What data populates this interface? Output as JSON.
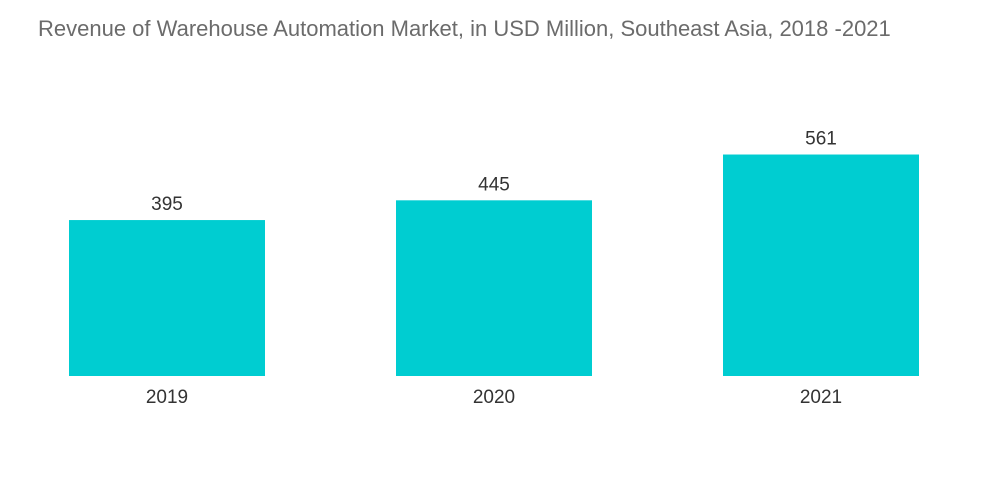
{
  "chart_data": {
    "type": "bar",
    "title": "Revenue of Warehouse Automation Market, in USD Million, Southeast Asia, 2018 -2021",
    "categories": [
      "2019",
      "2020",
      "2021"
    ],
    "values": [
      395,
      445,
      561
    ],
    "xlabel": "",
    "ylabel": "",
    "ylim": [
      0,
      600
    ],
    "grid": false,
    "legend": "none",
    "bar_color": "#00cdd1"
  }
}
